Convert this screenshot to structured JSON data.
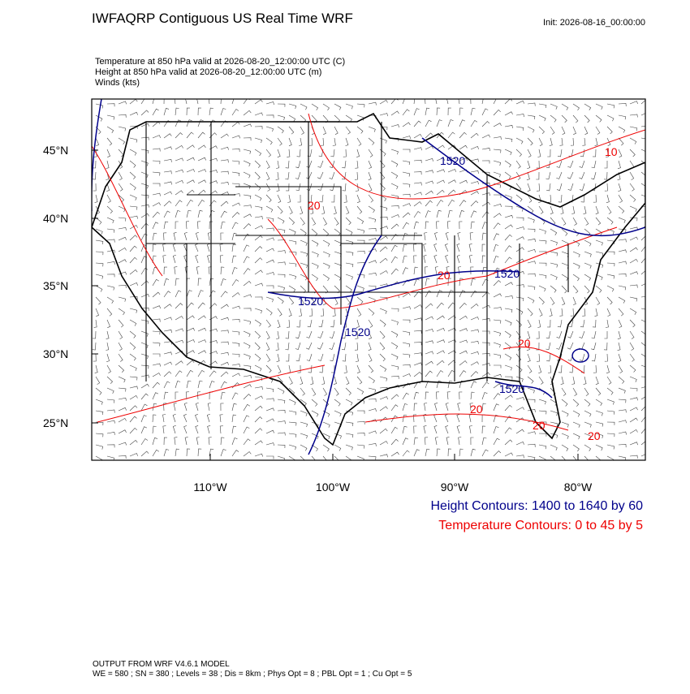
{
  "header": {
    "title": "IWFAQRP Contiguous US Real Time WRF",
    "init": "Init: 2026-08-16_00:00:00"
  },
  "fields": [
    "Temperature at 850 hPa valid at 2026-08-20_12:00:00 UTC   (C)",
    "Height at 850 hPa valid at 2026-08-20_12:00:00 UTC   (m)",
    "Winds   (kts)"
  ],
  "latitude_labels": [
    "45°N",
    "40°N",
    "35°N",
    "30°N",
    "25°N"
  ],
  "longitude_labels": [
    "110°W",
    "100°W",
    "90°W",
    "80°W"
  ],
  "height_contour_labels": [
    "1520",
    "1520",
    "1520",
    "1520",
    "1520"
  ],
  "temperature_contour_labels": [
    "20",
    "20",
    "20",
    "20",
    "20",
    "20",
    "10"
  ],
  "legend": {
    "height": "Height Contours: 1400 to 1640 by 60",
    "temperature": "Temperature Contours: 0 to 45 by 5"
  },
  "footer": [
    "OUTPUT FROM WRF V4.6.1 MODEL",
    "WE = 580 ; SN = 380 ; Levels = 38 ; Dis = 8km ; Phys Opt = 8 ; PBL Opt = 1 ; Cu Opt = 5"
  ]
}
